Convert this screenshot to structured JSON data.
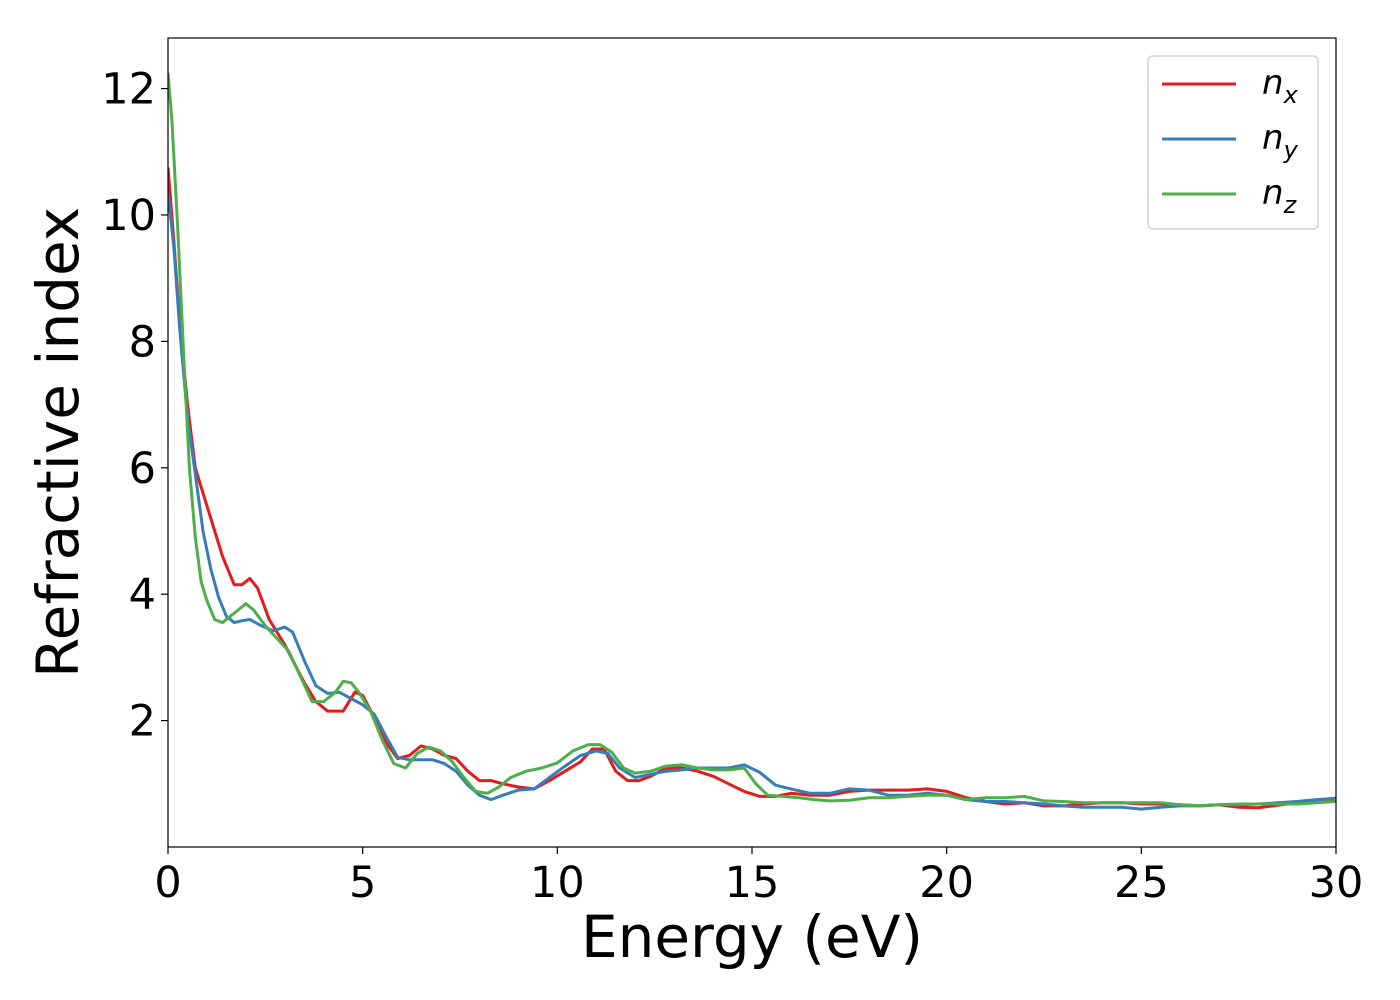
{
  "chart_data": {
    "type": "line",
    "xlabel": "Energy (eV)",
    "ylabel": "Refractive index",
    "xlim": [
      0,
      30
    ],
    "ylim": [
      0,
      12.8
    ],
    "xticks": [
      0,
      5,
      10,
      15,
      20,
      25,
      30
    ],
    "xtick_labels": [
      "0",
      "5",
      "10",
      "15",
      "20",
      "25",
      "30"
    ],
    "yticks": [
      2,
      4,
      6,
      8,
      10,
      12
    ],
    "ytick_labels": [
      "2",
      "4",
      "6",
      "8",
      "10",
      "12"
    ],
    "grid": false,
    "legend_position": "top-right",
    "series": [
      {
        "name": "n",
        "subscript": "x",
        "color": "#e41a1c",
        "x": [
          0,
          0.15,
          0.3,
          0.5,
          0.7,
          0.9,
          1.1,
          1.4,
          1.7,
          1.9,
          2.1,
          2.3,
          2.6,
          3.0,
          3.5,
          3.8,
          4.1,
          4.5,
          4.8,
          5.0,
          5.3,
          5.6,
          5.9,
          6.2,
          6.5,
          6.8,
          7.1,
          7.4,
          7.7,
          8.0,
          8.3,
          8.6,
          9.0,
          9.4,
          9.8,
          10.2,
          10.6,
          10.9,
          11.2,
          11.5,
          11.8,
          12.1,
          12.4,
          12.8,
          13.2,
          13.6,
          14.0,
          14.4,
          14.8,
          15.2,
          15.6,
          16.0,
          16.5,
          17.0,
          17.5,
          18.0,
          18.5,
          19.0,
          19.5,
          20.0,
          20.5,
          21.0,
          21.5,
          22.0,
          22.5,
          23.0,
          23.5,
          24.0,
          24.5,
          25.0,
          25.5,
          26.0,
          26.5,
          27.0,
          27.5,
          28.0,
          28.5,
          29.0,
          29.5,
          30.0
        ],
        "y": [
          10.75,
          9.6,
          8.3,
          7.0,
          6.0,
          5.6,
          5.2,
          4.6,
          4.15,
          4.15,
          4.25,
          4.1,
          3.6,
          3.2,
          2.6,
          2.3,
          2.15,
          2.15,
          2.45,
          2.4,
          2.05,
          1.65,
          1.4,
          1.45,
          1.6,
          1.55,
          1.45,
          1.4,
          1.2,
          1.05,
          1.05,
          1.0,
          0.95,
          0.92,
          1.05,
          1.2,
          1.35,
          1.55,
          1.55,
          1.2,
          1.05,
          1.05,
          1.12,
          1.25,
          1.25,
          1.2,
          1.12,
          1.0,
          0.88,
          0.8,
          0.8,
          0.85,
          0.82,
          0.82,
          0.88,
          0.9,
          0.9,
          0.9,
          0.92,
          0.88,
          0.78,
          0.72,
          0.68,
          0.7,
          0.65,
          0.65,
          0.68,
          0.7,
          0.7,
          0.68,
          0.68,
          0.67,
          0.65,
          0.67,
          0.63,
          0.62,
          0.66,
          0.7,
          0.72,
          0.72
        ]
      },
      {
        "name": "n",
        "subscript": "y",
        "color": "#377eb8",
        "x": [
          0,
          0.15,
          0.3,
          0.5,
          0.7,
          0.9,
          1.1,
          1.3,
          1.5,
          1.7,
          1.9,
          2.1,
          2.4,
          2.7,
          3.0,
          3.2,
          3.5,
          3.8,
          4.1,
          4.4,
          4.7,
          5.0,
          5.3,
          5.6,
          5.9,
          6.2,
          6.5,
          6.8,
          7.1,
          7.4,
          7.7,
          8.0,
          8.3,
          8.6,
          9.0,
          9.4,
          9.8,
          10.2,
          10.6,
          11.0,
          11.3,
          11.6,
          12.0,
          12.4,
          12.8,
          13.2,
          13.6,
          14.0,
          14.4,
          14.8,
          15.2,
          15.6,
          16.0,
          16.5,
          17.0,
          17.5,
          18.0,
          18.5,
          19.0,
          19.5,
          20.0,
          20.5,
          21.0,
          21.5,
          22.0,
          22.5,
          23.0,
          23.5,
          24.0,
          24.5,
          25.0,
          25.5,
          26.0,
          26.5,
          27.0,
          27.5,
          28.0,
          28.5,
          29.0,
          29.5,
          30.0
        ],
        "y": [
          10.35,
          9.5,
          8.2,
          6.8,
          5.9,
          5.0,
          4.4,
          3.95,
          3.65,
          3.55,
          3.58,
          3.6,
          3.5,
          3.42,
          3.48,
          3.4,
          2.95,
          2.55,
          2.43,
          2.45,
          2.35,
          2.25,
          2.1,
          1.75,
          1.42,
          1.38,
          1.38,
          1.38,
          1.32,
          1.2,
          0.98,
          0.82,
          0.75,
          0.82,
          0.9,
          0.92,
          1.1,
          1.28,
          1.45,
          1.52,
          1.48,
          1.25,
          1.1,
          1.15,
          1.2,
          1.22,
          1.25,
          1.25,
          1.25,
          1.3,
          1.18,
          0.98,
          0.92,
          0.85,
          0.85,
          0.92,
          0.9,
          0.82,
          0.82,
          0.85,
          0.82,
          0.75,
          0.72,
          0.72,
          0.7,
          0.68,
          0.65,
          0.63,
          0.63,
          0.63,
          0.6,
          0.63,
          0.65,
          0.65,
          0.67,
          0.67,
          0.68,
          0.7,
          0.72,
          0.75,
          0.77
        ]
      },
      {
        "name": "n",
        "subscript": "z",
        "color": "#4daf4a",
        "x": [
          0,
          0.1,
          0.25,
          0.4,
          0.55,
          0.7,
          0.85,
          1.0,
          1.2,
          1.4,
          1.6,
          1.8,
          2.0,
          2.2,
          2.5,
          2.8,
          3.1,
          3.4,
          3.7,
          4.0,
          4.3,
          4.5,
          4.7,
          4.9,
          5.2,
          5.5,
          5.8,
          6.1,
          6.4,
          6.7,
          7.0,
          7.3,
          7.6,
          7.9,
          8.2,
          8.5,
          8.8,
          9.2,
          9.6,
          10.0,
          10.4,
          10.8,
          11.1,
          11.4,
          11.7,
          12.0,
          12.4,
          12.8,
          13.2,
          13.6,
          14.0,
          14.4,
          14.8,
          15.1,
          15.4,
          15.8,
          16.2,
          16.6,
          17.0,
          17.5,
          18.0,
          18.5,
          19.0,
          19.5,
          20.0,
          20.5,
          21.0,
          21.5,
          22.0,
          22.5,
          23.0,
          23.5,
          24.0,
          24.5,
          25.0,
          25.5,
          26.0,
          26.5,
          27.0,
          27.5,
          28.0,
          28.5,
          29.0,
          29.5,
          30.0
        ],
        "y": [
          12.25,
          11.5,
          9.8,
          7.8,
          6.0,
          4.9,
          4.2,
          3.9,
          3.6,
          3.55,
          3.65,
          3.75,
          3.85,
          3.75,
          3.5,
          3.3,
          3.1,
          2.7,
          2.3,
          2.3,
          2.45,
          2.62,
          2.6,
          2.45,
          2.15,
          1.7,
          1.32,
          1.25,
          1.48,
          1.58,
          1.52,
          1.35,
          1.1,
          0.88,
          0.85,
          0.95,
          1.1,
          1.2,
          1.25,
          1.33,
          1.52,
          1.62,
          1.62,
          1.5,
          1.25,
          1.17,
          1.2,
          1.28,
          1.3,
          1.25,
          1.22,
          1.22,
          1.25,
          1.0,
          0.82,
          0.8,
          0.78,
          0.75,
          0.73,
          0.74,
          0.78,
          0.78,
          0.8,
          0.82,
          0.82,
          0.75,
          0.78,
          0.78,
          0.8,
          0.73,
          0.72,
          0.7,
          0.7,
          0.7,
          0.7,
          0.7,
          0.67,
          0.65,
          0.67,
          0.68,
          0.68,
          0.68,
          0.68,
          0.7,
          0.72
        ]
      }
    ]
  }
}
